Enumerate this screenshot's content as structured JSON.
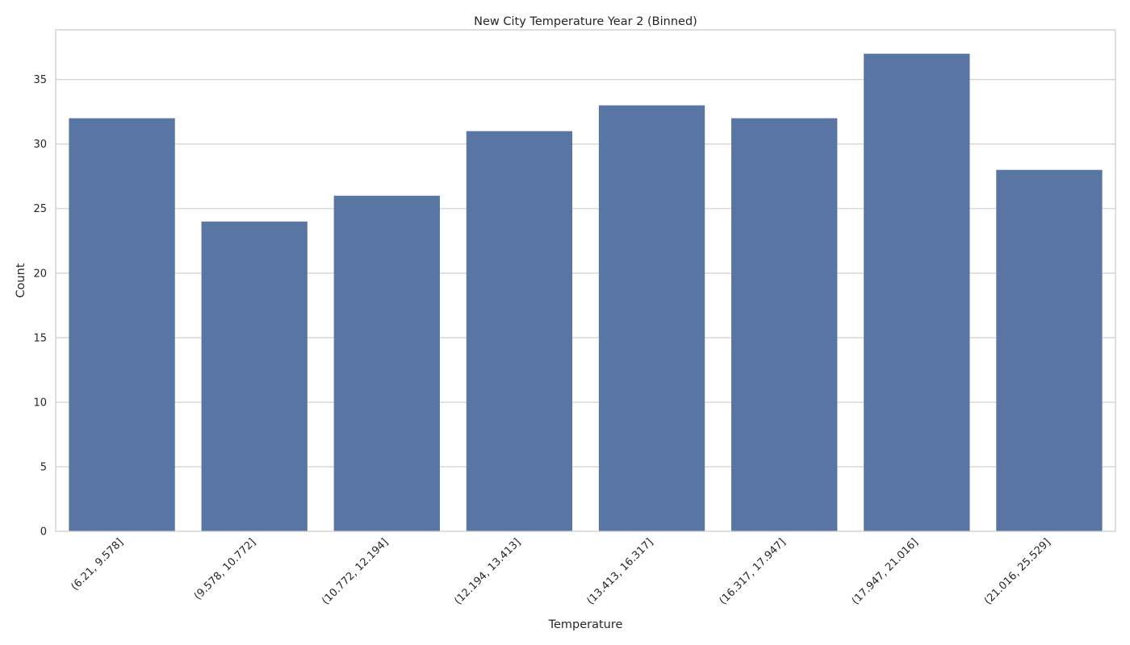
{
  "chart_data": {
    "type": "bar",
    "title": "New City Temperature Year 2 (Binned)",
    "xlabel": "Temperature",
    "ylabel": "Count",
    "categories": [
      "(6.21, 9.578]",
      "(9.578, 10.772]",
      "(10.772, 12.194]",
      "(12.194, 13.413]",
      "(13.413, 16.317]",
      "(16.317, 17.947]",
      "(17.947, 21.016]",
      "(21.016, 25.529]"
    ],
    "values": [
      32,
      24,
      26,
      31,
      33,
      32,
      37,
      28
    ],
    "ylim": [
      0,
      38.85
    ],
    "yticks": [
      0,
      5,
      10,
      15,
      20,
      25,
      30,
      35
    ],
    "grid": "horizontal",
    "bar_color": "#5975a4",
    "grid_color": "#cccccc",
    "background_color": "#ffffff"
  }
}
